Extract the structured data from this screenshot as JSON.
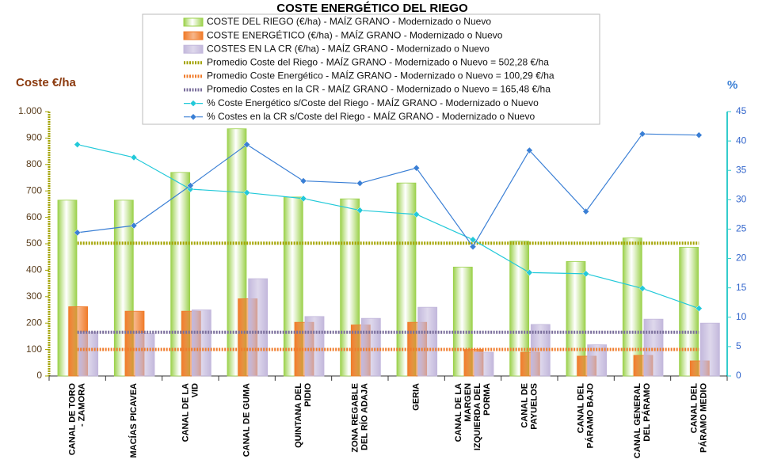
{
  "chart_data": {
    "type": "bar",
    "title": "COSTE ENERGÉTICO DEL RIEGO",
    "y_label": "Coste €/ha",
    "y2_label": "%",
    "categories": [
      "CANAL DE TORO - ZAMORA",
      "MACÍAS PICAVEA",
      "CANAL DE LA VID",
      "CANAL DE GUMA",
      "QUINTANA DEL PIDIO",
      "ZONA REGABLE DEL RÍO ADAJA",
      "GERIA",
      "CANAL DE LA MARGEN IZQUIERDA DEL PORMA",
      "CANAL DE PAYUELOS",
      "CANAL DEL PÁRAMO BAJO",
      "CANAL GENERAL DEL PÁRAMO",
      "CANAL DEL PÁRAMO MEDIO"
    ],
    "series": [
      {
        "name": "COSTE DEL RIEGO (€/ha) - MAÍZ GRANO - Modernizado o Nuevo",
        "type": "bar",
        "color": "#9bd14b",
        "values": [
          665,
          665,
          770,
          935,
          677,
          670,
          730,
          412,
          510,
          433,
          522,
          487
        ]
      },
      {
        "name": "COSTE ENERGÉTICO (€/ha) - MAÍZ GRANO - Modernizado o Nuevo",
        "type": "bar",
        "color": "#f07b2a",
        "values": [
          262,
          245,
          245,
          292,
          203,
          193,
          203,
          100,
          90,
          75,
          78,
          57
        ]
      },
      {
        "name": "COSTES EN LA CR (€/ha) - MAÍZ GRANO - Modernizado o Nuevo",
        "type": "bar",
        "color": "#c3b8dc",
        "values": [
          165,
          160,
          250,
          368,
          225,
          218,
          260,
          90,
          195,
          118,
          215,
          200
        ]
      },
      {
        "name": "Promedio Coste del Riego - MAÍZ GRANO - Modernizado o Nuevo = 502,28 €/ha",
        "type": "hline",
        "color": "#a3a300",
        "value": 502.28
      },
      {
        "name": "Promedio Coste Energético - MAÍZ GRANO - Modernizado o Nuevo = 100,29 €/ha",
        "type": "hline",
        "color": "#f07b2a",
        "value": 100.29
      },
      {
        "name": "Promedio Costes en la CR - MAÍZ GRANO - Modernizado o Nuevo = 165,48 €/ha",
        "type": "hline",
        "color": "#7b6f9c",
        "value": 165.48
      },
      {
        "name": "% Coste Energético s/Coste del Riego - MAÍZ GRANO - Modernizado o Nuevo",
        "type": "line",
        "axis": "y2",
        "color": "#22c9d9",
        "values": [
          39.4,
          37.2,
          31.8,
          31.2,
          30.2,
          28.2,
          27.5,
          23.2,
          17.6,
          17.4,
          14.9,
          11.5
        ]
      },
      {
        "name": "% Costes en la CR s/Coste del Riego - MAÍZ GRANO - Modernizado o Nuevo",
        "type": "line",
        "axis": "y2",
        "color": "#3a7fd5",
        "values": [
          24.4,
          25.6,
          32.4,
          39.4,
          33.2,
          32.8,
          35.4,
          22.0,
          38.4,
          28.0,
          41.2,
          41.0
        ]
      }
    ],
    "ylim": [
      0,
      1000
    ],
    "yticks": [
      0,
      100,
      200,
      300,
      400,
      500,
      600,
      700,
      800,
      900,
      {
        "value": 1000,
        "label": "1.000"
      }
    ],
    "y2lim": [
      0,
      45
    ],
    "y2ticks": [
      0,
      5,
      10,
      15,
      20,
      25,
      30,
      35,
      40,
      45
    ]
  }
}
